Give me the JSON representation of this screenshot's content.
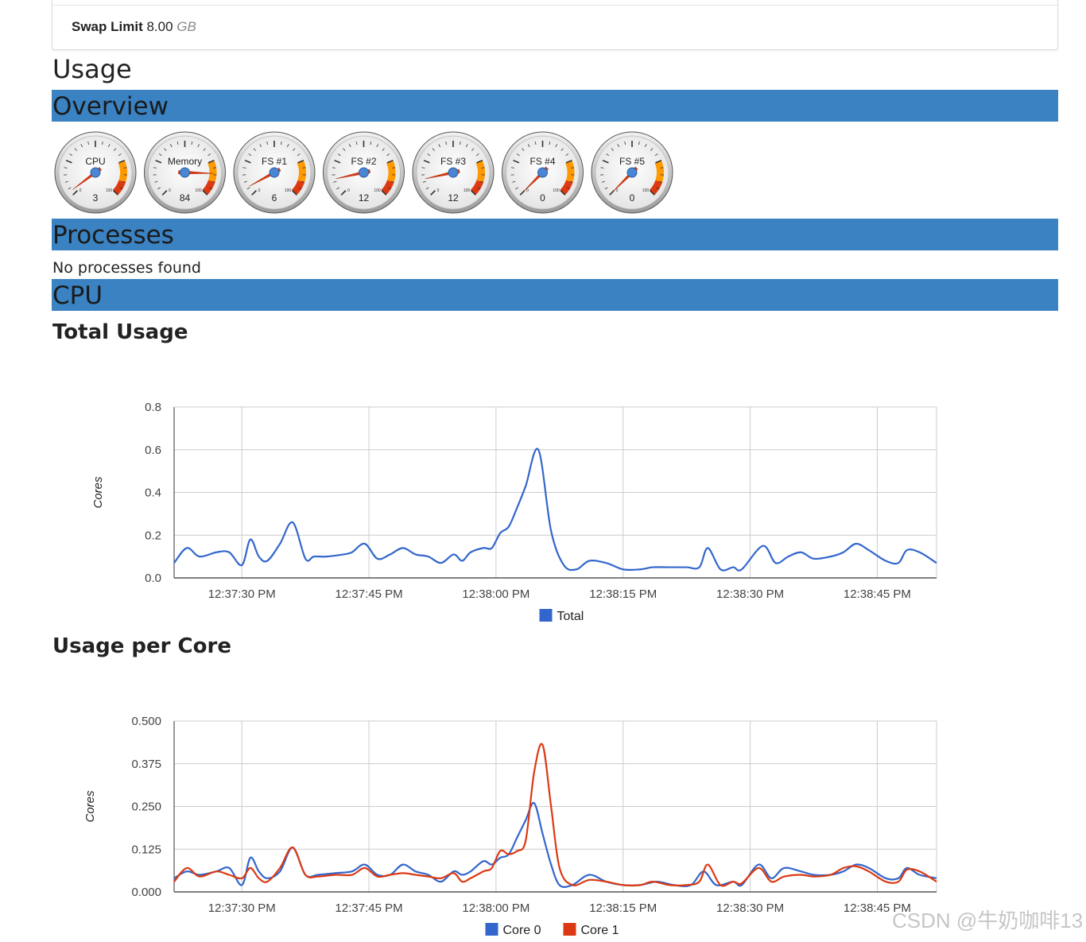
{
  "swap": {
    "label": "Swap Limit",
    "value": "8.00",
    "unit": "GB"
  },
  "usage_title": "Usage",
  "sections": {
    "overview": "Overview",
    "processes": "Processes",
    "cpu": "CPU"
  },
  "processes": {
    "empty_text": "No processes found"
  },
  "gauges": [
    {
      "label": "CPU",
      "value": 3
    },
    {
      "label": "Memory",
      "value": 84
    },
    {
      "label": "FS #1",
      "value": 6
    },
    {
      "label": "FS #2",
      "value": 12
    },
    {
      "label": "FS #3",
      "value": 12
    },
    {
      "label": "FS #4",
      "value": 0
    },
    {
      "label": "FS #5",
      "value": 0
    }
  ],
  "gauge_scale": {
    "min_label": "0",
    "max_label": "100"
  },
  "colors": {
    "header_bar": "#3a82c2",
    "core0": "#3366cc",
    "core1": "#dc3912",
    "gauge_yellow": "#ff9900",
    "gauge_red": "#dc3912"
  },
  "watermark": "CSDN @牛奶咖啡13",
  "chart_data": [
    {
      "type": "line",
      "title": "Total Usage",
      "ylabel": "Cores",
      "ylim": [
        0,
        0.8
      ],
      "yticks": [
        "0.0",
        "0.2",
        "0.4",
        "0.6",
        "0.8"
      ],
      "xticks": [
        "12:37:30 PM",
        "12:37:45 PM",
        "12:38:00 PM",
        "12:38:15 PM",
        "12:38:30 PM",
        "12:38:45 PM"
      ],
      "xrange": [
        22,
        112
      ],
      "legend": "bottom",
      "series": [
        {
          "name": "Total",
          "color": "#3366cc",
          "points": [
            [
              22,
              0.07
            ],
            [
              23.5,
              0.14
            ],
            [
              25,
              0.1
            ],
            [
              27,
              0.12
            ],
            [
              28.5,
              0.12
            ],
            [
              30,
              0.06
            ],
            [
              31,
              0.18
            ],
            [
              32,
              0.1
            ],
            [
              33,
              0.08
            ],
            [
              34.5,
              0.16
            ],
            [
              36,
              0.26
            ],
            [
              37.5,
              0.09
            ],
            [
              38.5,
              0.1
            ],
            [
              40,
              0.1
            ],
            [
              42,
              0.11
            ],
            [
              43,
              0.12
            ],
            [
              44.5,
              0.16
            ],
            [
              46,
              0.09
            ],
            [
              47.5,
              0.11
            ],
            [
              49,
              0.14
            ],
            [
              50.5,
              0.11
            ],
            [
              52,
              0.1
            ],
            [
              53.5,
              0.07
            ],
            [
              55,
              0.11
            ],
            [
              56,
              0.08
            ],
            [
              57,
              0.12
            ],
            [
              58.5,
              0.14
            ],
            [
              59.5,
              0.14
            ],
            [
              60.5,
              0.21
            ],
            [
              61.5,
              0.24
            ],
            [
              62.5,
              0.33
            ],
            [
              63.5,
              0.43
            ],
            [
              65,
              0.6
            ],
            [
              66.5,
              0.22
            ],
            [
              68,
              0.06
            ],
            [
              69.5,
              0.04
            ],
            [
              71,
              0.08
            ],
            [
              73,
              0.07
            ],
            [
              75,
              0.04
            ],
            [
              77,
              0.04
            ],
            [
              78.5,
              0.05
            ],
            [
              80.5,
              0.05
            ],
            [
              82.5,
              0.05
            ],
            [
              84,
              0.05
            ],
            [
              85,
              0.14
            ],
            [
              86.5,
              0.04
            ],
            [
              88,
              0.05
            ],
            [
              89,
              0.04
            ],
            [
              91.5,
              0.15
            ],
            [
              93,
              0.07
            ],
            [
              94.5,
              0.1
            ],
            [
              96,
              0.12
            ],
            [
              97.5,
              0.09
            ],
            [
              99.5,
              0.1
            ],
            [
              101,
              0.12
            ],
            [
              102.5,
              0.16
            ],
            [
              104,
              0.13
            ],
            [
              106,
              0.08
            ],
            [
              107.5,
              0.07
            ],
            [
              108.5,
              0.13
            ],
            [
              110,
              0.12
            ],
            [
              112,
              0.07
            ]
          ]
        }
      ]
    },
    {
      "type": "line",
      "title": "Usage per Core",
      "ylabel": "Cores",
      "ylim": [
        0,
        0.5
      ],
      "yticks": [
        "0.000",
        "0.125",
        "0.250",
        "0.375",
        "0.500"
      ],
      "xticks": [
        "12:37:30 PM",
        "12:37:45 PM",
        "12:38:00 PM",
        "12:38:15 PM",
        "12:38:30 PM",
        "12:38:45 PM"
      ],
      "xrange": [
        22,
        112
      ],
      "legend": "bottom",
      "series": [
        {
          "name": "Core 0",
          "color": "#3366cc",
          "points": [
            [
              22,
              0.04
            ],
            [
              23.5,
              0.06
            ],
            [
              25,
              0.05
            ],
            [
              27,
              0.06
            ],
            [
              28.5,
              0.07
            ],
            [
              30,
              0.02
            ],
            [
              31,
              0.1
            ],
            [
              32,
              0.06
            ],
            [
              33,
              0.04
            ],
            [
              34.5,
              0.06
            ],
            [
              36,
              0.13
            ],
            [
              37.5,
              0.05
            ],
            [
              39,
              0.05
            ],
            [
              41,
              0.055
            ],
            [
              43,
              0.06
            ],
            [
              44.5,
              0.08
            ],
            [
              46,
              0.05
            ],
            [
              47.5,
              0.05
            ],
            [
              49,
              0.08
            ],
            [
              50.5,
              0.06
            ],
            [
              52,
              0.05
            ],
            [
              53.5,
              0.03
            ],
            [
              55,
              0.06
            ],
            [
              56,
              0.05
            ],
            [
              57,
              0.06
            ],
            [
              58.5,
              0.09
            ],
            [
              59.5,
              0.08
            ],
            [
              60.5,
              0.1
            ],
            [
              61.5,
              0.11
            ],
            [
              62.5,
              0.16
            ],
            [
              63.5,
              0.21
            ],
            [
              64.5,
              0.26
            ],
            [
              65.5,
              0.17
            ],
            [
              66.5,
              0.08
            ],
            [
              67.5,
              0.02
            ],
            [
              69,
              0.02
            ],
            [
              71,
              0.05
            ],
            [
              73,
              0.03
            ],
            [
              75,
              0.02
            ],
            [
              77,
              0.02
            ],
            [
              79,
              0.03
            ],
            [
              81,
              0.02
            ],
            [
              83,
              0.02
            ],
            [
              84.5,
              0.06
            ],
            [
              86,
              0.02
            ],
            [
              88,
              0.03
            ],
            [
              89,
              0.02
            ],
            [
              91,
              0.08
            ],
            [
              92.5,
              0.04
            ],
            [
              94,
              0.07
            ],
            [
              96,
              0.06
            ],
            [
              97.5,
              0.05
            ],
            [
              99.5,
              0.05
            ],
            [
              101,
              0.06
            ],
            [
              102.5,
              0.08
            ],
            [
              104,
              0.07
            ],
            [
              106,
              0.04
            ],
            [
              107.5,
              0.04
            ],
            [
              108.5,
              0.07
            ],
            [
              110,
              0.05
            ],
            [
              112,
              0.04
            ]
          ]
        },
        {
          "name": "Core 1",
          "color": "#dc3912",
          "points": [
            [
              22,
              0.03
            ],
            [
              23.5,
              0.07
            ],
            [
              25,
              0.045
            ],
            [
              27,
              0.06
            ],
            [
              28.5,
              0.05
            ],
            [
              30,
              0.04
            ],
            [
              31,
              0.07
            ],
            [
              32,
              0.04
            ],
            [
              33,
              0.03
            ],
            [
              34.5,
              0.07
            ],
            [
              36,
              0.13
            ],
            [
              37.5,
              0.05
            ],
            [
              39,
              0.045
            ],
            [
              41,
              0.05
            ],
            [
              43,
              0.05
            ],
            [
              44.5,
              0.07
            ],
            [
              46,
              0.045
            ],
            [
              47.5,
              0.05
            ],
            [
              49,
              0.055
            ],
            [
              50.5,
              0.05
            ],
            [
              52,
              0.045
            ],
            [
              53.5,
              0.04
            ],
            [
              55,
              0.055
            ],
            [
              56,
              0.03
            ],
            [
              57,
              0.04
            ],
            [
              58.5,
              0.06
            ],
            [
              59.5,
              0.07
            ],
            [
              60.5,
              0.12
            ],
            [
              61.5,
              0.11
            ],
            [
              62.5,
              0.12
            ],
            [
              63.5,
              0.15
            ],
            [
              64.5,
              0.35
            ],
            [
              65.5,
              0.43
            ],
            [
              66.5,
              0.25
            ],
            [
              67.5,
              0.07
            ],
            [
              69,
              0.02
            ],
            [
              71,
              0.035
            ],
            [
              73,
              0.03
            ],
            [
              75,
              0.02
            ],
            [
              77,
              0.02
            ],
            [
              78.5,
              0.03
            ],
            [
              80.5,
              0.02
            ],
            [
              82.5,
              0.02
            ],
            [
              84,
              0.03
            ],
            [
              85,
              0.08
            ],
            [
              86.5,
              0.02
            ],
            [
              88,
              0.03
            ],
            [
              89,
              0.025
            ],
            [
              91,
              0.07
            ],
            [
              92.5,
              0.03
            ],
            [
              94,
              0.045
            ],
            [
              96,
              0.05
            ],
            [
              97.5,
              0.045
            ],
            [
              99.5,
              0.05
            ],
            [
              101,
              0.07
            ],
            [
              102.5,
              0.075
            ],
            [
              104,
              0.06
            ],
            [
              106,
              0.03
            ],
            [
              107.5,
              0.03
            ],
            [
              108.5,
              0.065
            ],
            [
              110,
              0.06
            ],
            [
              112,
              0.03
            ]
          ]
        }
      ]
    }
  ]
}
